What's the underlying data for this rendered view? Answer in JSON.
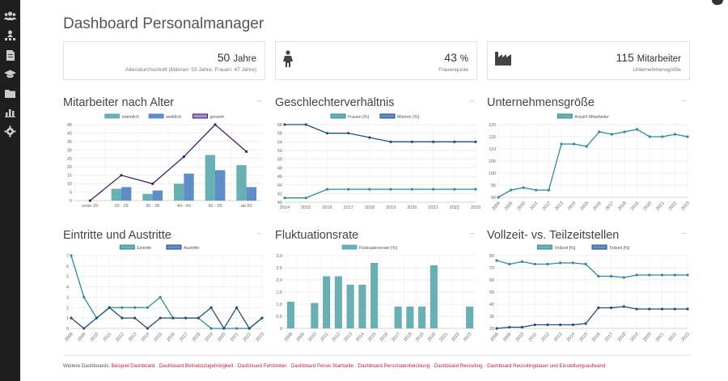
{
  "page": {
    "title": "Dashboard Personalmanager"
  },
  "sidebar": {
    "icons": [
      "users-icon",
      "org-chart-icon",
      "document-icon",
      "graduation-cap-icon",
      "folder-icon",
      "bar-chart-icon",
      "gear-icon"
    ]
  },
  "kpis": {
    "age": {
      "value": "50",
      "unit": "Jahre",
      "sub": "Altersdurchschnitt (Männer: 53 Jahre, Frauen: 47 Jahre)"
    },
    "women": {
      "value": "43",
      "unit": "%",
      "sub": "Frauenquote",
      "icon": "woman-icon"
    },
    "employees": {
      "value": "115",
      "unit": "Mitarbeiter",
      "sub": "Unternehmensgröße",
      "icon": "factory-icon"
    }
  },
  "colors": {
    "teal": "#6aafb3",
    "blue": "#5f8dc8",
    "navy": "#1f4f7d",
    "purple": "#3a1f63",
    "tealLine": "#2b8c95",
    "link": "#b0283c"
  },
  "charts": {
    "age": {
      "title": "Mitarbeiter nach Alter",
      "minimize": "–",
      "chart_data": {
        "type": "bar",
        "categories": [
          "unter 20",
          "20 - 29",
          "30 - 39",
          "40 - 49",
          "50 - 59",
          "ab 60"
        ],
        "series": [
          {
            "name": "männlich",
            "values": [
              0,
              7,
              4,
              10,
              27,
              21
            ]
          },
          {
            "name": "weiblich",
            "values": [
              0,
              8,
              6,
              16,
              18,
              8
            ]
          },
          {
            "name": "gesamt",
            "values": [
              0,
              15,
              10,
              26,
              45,
              29
            ]
          }
        ],
        "ylim": [
          0,
          45
        ],
        "yticks": [
          0,
          5,
          10,
          15,
          20,
          25,
          30,
          35,
          40,
          45
        ]
      }
    },
    "gender": {
      "title": "Geschlechterverhältnis",
      "minimize": "–",
      "chart_data": {
        "type": "line",
        "x": [
          "2014",
          "2015",
          "2016",
          "2017",
          "2018",
          "2019",
          "2020",
          "2021",
          "2022",
          "2023"
        ],
        "series": [
          {
            "name": "Frauen [%]",
            "values": [
              41,
              41,
              43,
              43,
              43,
              43,
              43,
              43,
              43,
              43
            ]
          },
          {
            "name": "Männer [%]",
            "values": [
              58,
              58,
              56,
              56,
              55,
              54,
              54,
              54,
              54,
              54
            ]
          }
        ],
        "ylim": [
          40,
          58
        ],
        "yticks": [
          40,
          42,
          44,
          46,
          48,
          50,
          52,
          54,
          56,
          58
        ]
      }
    },
    "size": {
      "title": "Unternehmensgröße",
      "minimize": "–",
      "chart_data": {
        "type": "line",
        "x": [
          "2006",
          "2009",
          "2010",
          "2011",
          "2012",
          "2013",
          "2014",
          "2015",
          "2016",
          "2017",
          "2018",
          "2019",
          "2020",
          "2021",
          "2022",
          "2023"
        ],
        "series": [
          {
            "name": "Anzahl Mitarbeiter",
            "values": [
              90,
              93,
              94,
              93,
              93,
              112,
              112,
              111,
              117,
              116,
              117,
              118,
              115,
              115,
              116,
              115
            ]
          }
        ],
        "ylim": [
          90,
          120
        ],
        "yticks": [
          90,
          95,
          100,
          105,
          110,
          115,
          120
        ]
      }
    },
    "inout": {
      "title": "Eintritte und Austritte",
      "minimize": "–",
      "chart_data": {
        "type": "line",
        "x": [
          "2008",
          "2009",
          "2010",
          "2011",
          "2012",
          "2013",
          "2014",
          "2015",
          "2016",
          "2017",
          "2018",
          "2019",
          "2020",
          "2021",
          "2022",
          "2023"
        ],
        "series": [
          {
            "name": "Eintritte",
            "values": [
              7,
              3,
              1,
              2,
              2,
              2,
              2,
              3,
              1,
              1,
              1,
              0,
              0,
              0,
              0,
              1
            ]
          },
          {
            "name": "Austritte",
            "values": [
              1,
              0,
              1,
              2,
              1,
              1,
              0,
              1,
              1,
              1,
              1,
              2,
              0,
              2,
              0,
              1
            ]
          }
        ],
        "ylim": [
          0,
          7
        ],
        "yticks": [
          0,
          1,
          2,
          3,
          4,
          5,
          6,
          7
        ]
      }
    },
    "fluct": {
      "title": "Fluktuationsrate",
      "minimize": "–",
      "chart_data": {
        "type": "bar",
        "categories": [
          "2008",
          "2009",
          "2010",
          "2011",
          "2012",
          "2013",
          "2014",
          "2015",
          "2016",
          "2017",
          "2018",
          "2019",
          "2020",
          "2021",
          "2022",
          "2023"
        ],
        "series": [
          {
            "name": "Fluktuationsrate [%]",
            "values": [
              1.1,
              0,
              1.05,
              2.15,
              2.15,
              1.8,
              1.8,
              2.7,
              0,
              0.9,
              0.9,
              0.9,
              2.6,
              0,
              0,
              0.9
            ]
          }
        ],
        "ylim": [
          0,
          3
        ],
        "yticks": [
          "0",
          "0,5",
          "1,0",
          "1,5",
          "2,0",
          "2,5",
          "3,0"
        ]
      }
    },
    "fullpart": {
      "title": "Vollzeit- vs. Teilzeitstellen",
      "minimize": "–",
      "chart_data": {
        "type": "line",
        "x": [
          "2008",
          "2009",
          "2010",
          "2011",
          "2012",
          "2013",
          "2014",
          "2015",
          "2016",
          "2017",
          "2018",
          "2019",
          "2020",
          "2021",
          "2022",
          "2023"
        ],
        "series": [
          {
            "name": "Vollzeit [%]",
            "values": [
              76,
              73,
              75,
              73,
              73,
              74,
              74,
              73,
              63,
              63,
              62,
              64,
              64,
              64,
              64,
              64
            ]
          },
          {
            "name": "Teilzeit [%]",
            "values": [
              20,
              21,
              21,
              23,
              23,
              23,
              23,
              24,
              37,
              37,
              38,
              36,
              36,
              36,
              36,
              36
            ]
          }
        ],
        "ylim": [
          20,
          80
        ],
        "yticks": [
          20,
          30,
          40,
          50,
          60,
          70,
          80
        ]
      }
    }
  },
  "footer": {
    "prefix": "Weitere Dashboards:",
    "links": [
      "Beispiel Dashboard",
      "Dashboard Betriebszugehörigkeit",
      "Dashboard Fehlzeiten",
      "Dashboard Persis Startseite",
      "Dashboard Personalentwicklung",
      "Dashboard Recruiting",
      "Dashboard Recruitingdauer und Einstellungsaufwand"
    ]
  }
}
